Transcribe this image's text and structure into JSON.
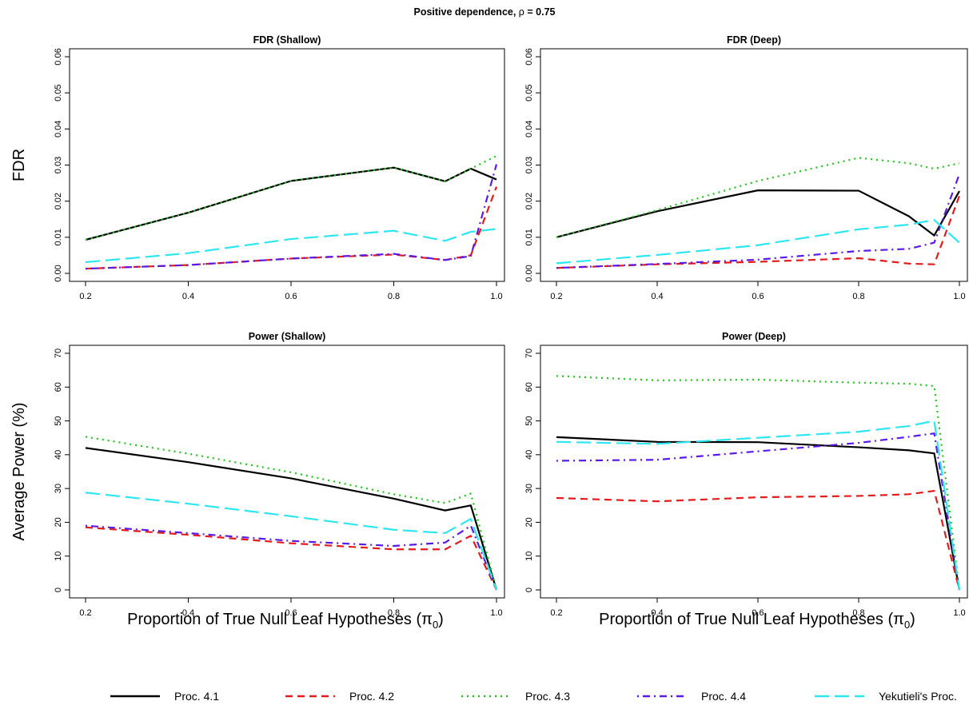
{
  "figure": {
    "title_prefix": "Positive dependence, ",
    "title_rho": "ρ",
    "title_suffix": " = 0.75"
  },
  "xlabel_main": "Proportion of True Null Leaf Hypotheses (",
  "xlabel_pi": "π",
  "xlabel_sub": "0",
  "xlabel_close": ")",
  "legend": [
    {
      "label": "Proc. 4.1",
      "color": "#000000",
      "dash": "solid"
    },
    {
      "label": "Proc. 4.2",
      "color": "#e41a1c",
      "dash": "dashed"
    },
    {
      "label": "Proc. 4.3",
      "color": "#22c01e",
      "dash": "dotted"
    },
    {
      "label": "Proc. 4.4",
      "color": "#5a1ae6",
      "dash": "dotdash"
    },
    {
      "label": "Yekutieli's Proc.",
      "color": "#2ee6ee",
      "dash": "longdash"
    }
  ],
  "chart_data": [
    {
      "type": "line",
      "title": "FDR (Shallow)",
      "ylabel": "FDR",
      "xlabel": "",
      "x": [
        0.2,
        0.4,
        0.6,
        0.8,
        0.9,
        0.95,
        1.0
      ],
      "xticks": [
        "0.2",
        "0.4",
        "0.6",
        "0.8",
        "1.0"
      ],
      "yticks": [
        "0.00",
        "0.01",
        "0.02",
        "0.03",
        "0.04",
        "0.05",
        "0.06"
      ],
      "ylim": [
        0,
        0.06
      ],
      "series": [
        {
          "name": "Proc. 4.1",
          "values": [
            0.0093,
            0.0168,
            0.0256,
            0.0293,
            0.0255,
            0.029,
            0.026
          ]
        },
        {
          "name": "Proc. 4.2",
          "values": [
            0.0013,
            0.0023,
            0.0041,
            0.0052,
            0.0037,
            0.005,
            0.024
          ]
        },
        {
          "name": "Proc. 4.3",
          "values": [
            0.0093,
            0.0168,
            0.0256,
            0.0293,
            0.0255,
            0.029,
            0.0325
          ]
        },
        {
          "name": "Proc. 4.4",
          "values": [
            0.0013,
            0.0023,
            0.0041,
            0.0054,
            0.0037,
            0.0048,
            0.0302
          ]
        },
        {
          "name": "Yekutieli's Proc.",
          "values": [
            0.0031,
            0.0056,
            0.0095,
            0.0118,
            0.009,
            0.0115,
            0.0123
          ]
        }
      ]
    },
    {
      "type": "line",
      "title": "FDR (Deep)",
      "ylabel": "",
      "xlabel": "",
      "x": [
        0.2,
        0.4,
        0.6,
        0.8,
        0.9,
        0.95,
        1.0
      ],
      "xticks": [
        "0.2",
        "0.4",
        "0.6",
        "0.8",
        "1.0"
      ],
      "yticks": [
        "0.00",
        "0.01",
        "0.02",
        "0.03",
        "0.04",
        "0.05",
        "0.06"
      ],
      "ylim": [
        0,
        0.06
      ],
      "series": [
        {
          "name": "Proc. 4.1",
          "values": [
            0.01,
            0.0172,
            0.023,
            0.0229,
            0.0158,
            0.0105,
            0.0228
          ]
        },
        {
          "name": "Proc. 4.2",
          "values": [
            0.0015,
            0.0025,
            0.0032,
            0.0042,
            0.0027,
            0.0025,
            0.0215
          ]
        },
        {
          "name": "Proc. 4.3",
          "values": [
            0.01,
            0.0175,
            0.0256,
            0.032,
            0.0305,
            0.029,
            0.0305
          ]
        },
        {
          "name": "Proc. 4.4",
          "values": [
            0.0015,
            0.0026,
            0.0038,
            0.0062,
            0.0068,
            0.0085,
            0.0275
          ]
        },
        {
          "name": "Yekutieli's Proc.",
          "values": [
            0.0028,
            0.0051,
            0.0078,
            0.0122,
            0.0135,
            0.0148,
            0.0085
          ]
        }
      ]
    },
    {
      "type": "line",
      "title": "Power (Shallow)",
      "ylabel": "Average Power (%)",
      "xlabel": "",
      "x": [
        0.2,
        0.4,
        0.6,
        0.8,
        0.9,
        0.95,
        1.0
      ],
      "xticks": [
        "0.2",
        "0.4",
        "0.6",
        "0.8",
        "1.0"
      ],
      "yticks": [
        "0",
        "10",
        "20",
        "30",
        "40",
        "50",
        "60",
        "70"
      ],
      "ylim": [
        0,
        70
      ],
      "series": [
        {
          "name": "Proc. 4.1",
          "values": [
            42,
            37.8,
            33,
            27,
            23.5,
            25,
            0
          ]
        },
        {
          "name": "Proc. 4.2",
          "values": [
            18.5,
            16.3,
            13.8,
            12,
            12,
            16,
            0
          ]
        },
        {
          "name": "Proc. 4.3",
          "values": [
            45.3,
            40.3,
            34.8,
            28.3,
            25.7,
            28.5,
            0
          ]
        },
        {
          "name": "Proc. 4.4",
          "values": [
            19,
            16.8,
            14.5,
            13,
            14,
            19,
            0
          ]
        },
        {
          "name": "Yekutieli's Proc.",
          "values": [
            28.8,
            25.5,
            21.8,
            17.8,
            16.8,
            21,
            0
          ]
        }
      ]
    },
    {
      "type": "line",
      "title": "Power (Deep)",
      "ylabel": "",
      "xlabel": "",
      "x": [
        0.2,
        0.4,
        0.6,
        0.8,
        0.9,
        0.95,
        1.0
      ],
      "xticks": [
        "0.2",
        "0.4",
        "0.6",
        "0.8",
        "1.0"
      ],
      "yticks": [
        "0",
        "10",
        "20",
        "30",
        "40",
        "50",
        "60",
        "70"
      ],
      "ylim": [
        0,
        70
      ],
      "series": [
        {
          "name": "Proc. 4.1",
          "values": [
            45.2,
            43.8,
            43.7,
            42.2,
            41.3,
            40.4,
            0
          ]
        },
        {
          "name": "Proc. 4.2",
          "values": [
            27.2,
            26.2,
            27.4,
            27.8,
            28.3,
            29.3,
            0
          ]
        },
        {
          "name": "Proc. 4.3",
          "values": [
            63.3,
            62,
            62.2,
            61.3,
            61,
            60.3,
            0
          ]
        },
        {
          "name": "Proc. 4.4",
          "values": [
            38.2,
            38.5,
            41,
            43.5,
            45.3,
            46.3,
            0
          ]
        },
        {
          "name": "Yekutieli's Proc.",
          "values": [
            43.8,
            43.2,
            45,
            46.8,
            48.5,
            50,
            0
          ]
        }
      ]
    }
  ]
}
